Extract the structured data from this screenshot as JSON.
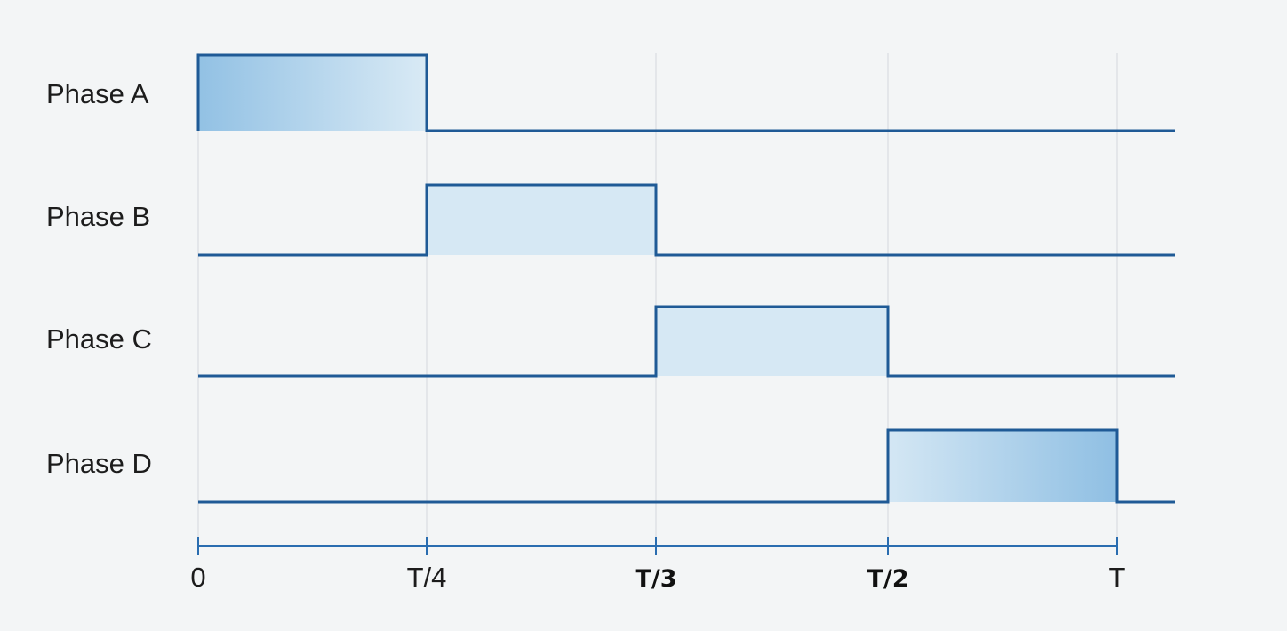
{
  "diagram": {
    "phases": [
      {
        "label": "Phase A",
        "high_from": "0",
        "high_to": "T/4"
      },
      {
        "label": "Phase B",
        "high_from": "T/4",
        "high_to": "T/3"
      },
      {
        "label": "Phase C",
        "high_from": "T/3",
        "high_to": "T/2"
      },
      {
        "label": "Phase D",
        "high_from": "T/2",
        "high_to": "T"
      }
    ],
    "ticks": [
      {
        "label": "0",
        "bold": false
      },
      {
        "label": "T/4",
        "bold": false
      },
      {
        "label": "T/3",
        "bold": true
      },
      {
        "label": "T/2",
        "bold": true
      },
      {
        "label": "T",
        "bold": false
      }
    ],
    "colors": {
      "line": "#1f5a96",
      "fill_dark": "#9cc6e6",
      "fill_light": "#d6e8f4",
      "grid": "#d9dde1",
      "axis": "#2a6db0"
    }
  }
}
